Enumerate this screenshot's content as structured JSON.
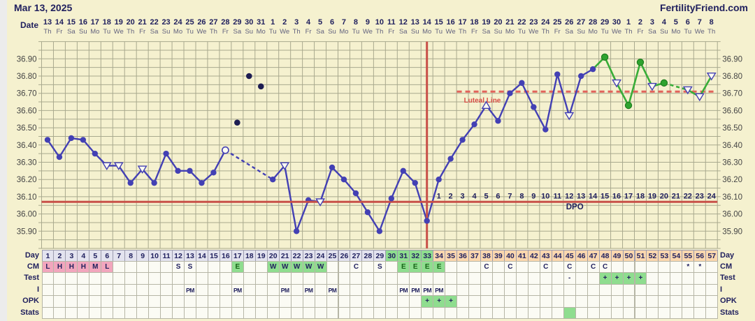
{
  "header": {
    "cycle_start_date": "Mar 13, 2025",
    "site": "FertilityFriend.com",
    "date_label": "Date"
  },
  "calendar": {
    "dates": [
      13,
      14,
      15,
      16,
      17,
      18,
      19,
      20,
      21,
      22,
      23,
      24,
      25,
      26,
      27,
      28,
      29,
      30,
      31,
      1,
      2,
      3,
      4,
      5,
      6,
      7,
      8,
      9,
      10,
      11,
      12,
      13,
      14,
      15,
      16,
      17,
      18,
      19,
      20,
      21,
      22,
      23,
      24,
      25,
      26,
      27,
      28,
      29,
      30,
      1,
      2,
      3,
      4,
      5,
      6,
      7,
      8
    ],
    "weekdays": [
      "Th",
      "Fr",
      "Sa",
      "Su",
      "Mo",
      "Tu",
      "We",
      "Th",
      "Fr",
      "Sa",
      "Su",
      "Mo",
      "Tu",
      "We",
      "Th",
      "Fr",
      "Sa",
      "Su",
      "Mo",
      "Tu",
      "We",
      "Th",
      "Fr",
      "Sa",
      "Su",
      "Mo",
      "Tu",
      "We",
      "Th",
      "Fr",
      "Sa",
      "Su",
      "Mo",
      "Tu",
      "We",
      "Th",
      "Fr",
      "Sa",
      "Su",
      "Mo",
      "Tu",
      "We",
      "Th",
      "Fr",
      "Sa",
      "Su",
      "Mo",
      "Tu",
      "We",
      "Th",
      "Fr",
      "Sa",
      "Su",
      "Mo",
      "Tu",
      "We",
      "Th"
    ]
  },
  "chart_data": {
    "type": "line",
    "title": "Basal body temperature chart",
    "unit": "C",
    "ylim": [
      35.8,
      37.0
    ],
    "ytick_labels": [
      "36.90",
      "36.80",
      "36.70",
      "36.60",
      "36.50",
      "36.40",
      "36.30",
      "36.20",
      "36.10",
      "36.00",
      "35.90"
    ],
    "days_total": 57,
    "points": [
      {
        "day": 1,
        "temp": 36.43,
        "marker": "dot"
      },
      {
        "day": 2,
        "temp": 36.33,
        "marker": "dot"
      },
      {
        "day": 3,
        "temp": 36.44,
        "marker": "dot"
      },
      {
        "day": 4,
        "temp": 36.43,
        "marker": "dot"
      },
      {
        "day": 5,
        "temp": 36.35,
        "marker": "dot"
      },
      {
        "day": 6,
        "temp": 36.28,
        "marker": "tri_down"
      },
      {
        "day": 7,
        "temp": 36.28,
        "marker": "tri_down"
      },
      {
        "day": 8,
        "temp": 36.18,
        "marker": "dot"
      },
      {
        "day": 9,
        "temp": 36.26,
        "marker": "tri_down"
      },
      {
        "day": 10,
        "temp": 36.18,
        "marker": "dot"
      },
      {
        "day": 11,
        "temp": 36.35,
        "marker": "dot"
      },
      {
        "day": 12,
        "temp": 36.25,
        "marker": "dot"
      },
      {
        "day": 13,
        "temp": 36.25,
        "marker": "dot"
      },
      {
        "day": 14,
        "temp": 36.18,
        "marker": "dot"
      },
      {
        "day": 15,
        "temp": 36.24,
        "marker": "dot"
      },
      {
        "day": 16,
        "temp": 36.37,
        "marker": "open"
      },
      {
        "day": 17,
        "temp": 36.53,
        "marker": "black"
      },
      {
        "day": 18,
        "temp": 36.8,
        "marker": "black"
      },
      {
        "day": 19,
        "temp": 36.74,
        "marker": "black"
      },
      {
        "day": 20,
        "temp": 36.2,
        "marker": "dot"
      },
      {
        "day": 21,
        "temp": 36.28,
        "marker": "tri_down"
      },
      {
        "day": 22,
        "temp": 35.9,
        "marker": "dot"
      },
      {
        "day": 23,
        "temp": 36.08,
        "marker": "dot"
      },
      {
        "day": 24,
        "temp": 36.07,
        "marker": "tri_down"
      },
      {
        "day": 25,
        "temp": 36.27,
        "marker": "dot"
      },
      {
        "day": 26,
        "temp": 36.2,
        "marker": "dot"
      },
      {
        "day": 27,
        "temp": 36.12,
        "marker": "dot"
      },
      {
        "day": 28,
        "temp": 36.01,
        "marker": "dot"
      },
      {
        "day": 29,
        "temp": 35.9,
        "marker": "dot"
      },
      {
        "day": 30,
        "temp": 36.09,
        "marker": "dot"
      },
      {
        "day": 31,
        "temp": 36.25,
        "marker": "dot"
      },
      {
        "day": 32,
        "temp": 36.18,
        "marker": "dot"
      },
      {
        "day": 33,
        "temp": 35.96,
        "marker": "dot"
      },
      {
        "day": 34,
        "temp": 36.2,
        "marker": "dot"
      },
      {
        "day": 35,
        "temp": 36.32,
        "marker": "dot"
      },
      {
        "day": 36,
        "temp": 36.43,
        "marker": "dot"
      },
      {
        "day": 37,
        "temp": 36.52,
        "marker": "dot"
      },
      {
        "day": 38,
        "temp": 36.63,
        "marker": "tri_up"
      },
      {
        "day": 39,
        "temp": 36.54,
        "marker": "dot"
      },
      {
        "day": 40,
        "temp": 36.7,
        "marker": "dot"
      },
      {
        "day": 41,
        "temp": 36.76,
        "marker": "dot"
      },
      {
        "day": 42,
        "temp": 36.62,
        "marker": "dot"
      },
      {
        "day": 43,
        "temp": 36.49,
        "marker": "dot"
      },
      {
        "day": 44,
        "temp": 36.81,
        "marker": "dot"
      },
      {
        "day": 45,
        "temp": 36.57,
        "marker": "tri_down"
      },
      {
        "day": 46,
        "temp": 36.8,
        "marker": "dot"
      },
      {
        "day": 47,
        "temp": 36.84,
        "marker": "dot"
      },
      {
        "day": 48,
        "temp": 36.91,
        "marker": "green"
      },
      {
        "day": 49,
        "temp": 36.76,
        "marker": "tri_down"
      },
      {
        "day": 50,
        "temp": 36.63,
        "marker": "green"
      },
      {
        "day": 51,
        "temp": 36.88,
        "marker": "green"
      },
      {
        "day": 52,
        "temp": 36.74,
        "marker": "tri_down"
      },
      {
        "day": 53,
        "temp": 36.76,
        "marker": "green"
      },
      {
        "day": 55,
        "temp": 36.72,
        "marker": "tri_down"
      },
      {
        "day": 56,
        "temp": 36.68,
        "marker": "tri_down"
      },
      {
        "day": 57,
        "temp": 36.8,
        "marker": "tri_down"
      }
    ],
    "line_segments": [
      {
        "from": 1,
        "to": 16,
        "style": "solid",
        "color": "blue"
      },
      {
        "from": 16,
        "to": 20,
        "style": "dashed",
        "color": "blue"
      },
      {
        "from": 20,
        "to": 47,
        "style": "solid",
        "color": "blue"
      },
      {
        "from": 47,
        "to": 53,
        "style": "solid",
        "color": "green"
      },
      {
        "from": 53,
        "to": 55,
        "style": "dashed",
        "color": "green"
      },
      {
        "from": 55,
        "to": 57,
        "style": "solid",
        "color": "green"
      }
    ],
    "coverline_temp": 36.07,
    "ovulation_day": 33,
    "luteal_line": {
      "temp": 36.71,
      "label": "Luteal Line",
      "start_day": 36,
      "end_day": 57
    },
    "dpo_axis": {
      "label": "DPO",
      "start_day": 34,
      "numbers": [
        1,
        2,
        3,
        4,
        5,
        6,
        7,
        8,
        9,
        10,
        11,
        12,
        13,
        14,
        15,
        16,
        17,
        18,
        19,
        20,
        21,
        22,
        23,
        24
      ]
    }
  },
  "table": {
    "row_labels_left": [
      "Day",
      "CM",
      "Test",
      "I",
      "OPK",
      "Stats"
    ],
    "row_labels_right": [
      "Day",
      "CM",
      "Test",
      "I",
      "OPK",
      "Stats"
    ],
    "day_numbers": [
      1,
      2,
      3,
      4,
      5,
      6,
      7,
      8,
      9,
      10,
      11,
      12,
      13,
      14,
      15,
      16,
      17,
      18,
      19,
      20,
      21,
      22,
      23,
      24,
      25,
      26,
      27,
      28,
      29,
      30,
      31,
      32,
      33,
      34,
      35,
      36,
      37,
      38,
      39,
      40,
      41,
      42,
      43,
      44,
      45,
      46,
      47,
      48,
      49,
      50,
      51,
      52,
      53,
      54,
      55,
      56,
      57
    ],
    "day_phases": [
      {
        "from": 1,
        "to": 29,
        "phase": "normal"
      },
      {
        "from": 30,
        "to": 33,
        "phase": "fertile"
      },
      {
        "from": 34,
        "to": 57,
        "phase": "luteal"
      }
    ],
    "cm": [
      {
        "day": 1,
        "text": "L",
        "bg": "pink"
      },
      {
        "day": 2,
        "text": "H",
        "bg": "pink"
      },
      {
        "day": 3,
        "text": "H",
        "bg": "pink"
      },
      {
        "day": 4,
        "text": "H",
        "bg": "pink"
      },
      {
        "day": 5,
        "text": "M",
        "bg": "pink"
      },
      {
        "day": 6,
        "text": "L",
        "bg": "pink"
      },
      {
        "day": 12,
        "text": "S",
        "bg": "none"
      },
      {
        "day": 13,
        "text": "S",
        "bg": "none"
      },
      {
        "day": 17,
        "text": "E",
        "bg": "green"
      },
      {
        "day": 20,
        "text": "W",
        "bg": "green"
      },
      {
        "day": 21,
        "text": "W",
        "bg": "green"
      },
      {
        "day": 22,
        "text": "W",
        "bg": "green"
      },
      {
        "day": 23,
        "text": "W",
        "bg": "green"
      },
      {
        "day": 24,
        "text": "W",
        "bg": "green"
      },
      {
        "day": 27,
        "text": "C",
        "bg": "none"
      },
      {
        "day": 29,
        "text": "S",
        "bg": "none"
      },
      {
        "day": 31,
        "text": "E",
        "bg": "green"
      },
      {
        "day": 32,
        "text": "E",
        "bg": "green"
      },
      {
        "day": 33,
        "text": "E",
        "bg": "green"
      },
      {
        "day": 34,
        "text": "E",
        "bg": "green"
      },
      {
        "day": 38,
        "text": "C",
        "bg": "none"
      },
      {
        "day": 40,
        "text": "C",
        "bg": "none"
      },
      {
        "day": 43,
        "text": "C",
        "bg": "none"
      },
      {
        "day": 45,
        "text": "C",
        "bg": "none"
      },
      {
        "day": 47,
        "text": "C",
        "bg": "none"
      },
      {
        "day": 48,
        "text": "C",
        "bg": "none"
      },
      {
        "day": 55,
        "text": "*",
        "bg": "none"
      },
      {
        "day": 56,
        "text": "*",
        "bg": "none"
      }
    ],
    "test": [
      {
        "day": 45,
        "text": "-",
        "bg": "none"
      },
      {
        "day": 48,
        "text": "+",
        "bg": "green"
      },
      {
        "day": 49,
        "text": "+",
        "bg": "green"
      },
      {
        "day": 50,
        "text": "+",
        "bg": "green"
      },
      {
        "day": 51,
        "text": "+",
        "bg": "green"
      }
    ],
    "intercourse": [
      {
        "day": 13,
        "text": "PM"
      },
      {
        "day": 17,
        "text": "PM"
      },
      {
        "day": 21,
        "text": "PM"
      },
      {
        "day": 23,
        "text": "PM"
      },
      {
        "day": 25,
        "text": "PM"
      },
      {
        "day": 31,
        "text": "PM"
      },
      {
        "day": 32,
        "text": "PM"
      },
      {
        "day": 33,
        "text": "PM"
      },
      {
        "day": 34,
        "text": "PM"
      }
    ],
    "opk": [
      {
        "day": 33,
        "text": "+",
        "bg": "green"
      },
      {
        "day": 34,
        "text": "+",
        "bg": "green"
      },
      {
        "day": 35,
        "text": "+",
        "bg": "green"
      }
    ],
    "stats": [
      {
        "day": 45,
        "text": "",
        "bg": "green"
      }
    ]
  },
  "colors": {
    "page_bg": "#f5f1cf",
    "grid": "#a9a98e",
    "navy": "#20205e",
    "line_blue": "#4340b4",
    "dot_black": "#1d1d52",
    "line_green": "#38ad38",
    "green_dot": "#2fa32f",
    "green_dot_edge": "#1e7d1e",
    "red": "#c85048",
    "luteal_red": "#e2635a",
    "luteal_text": "#d94f48",
    "pink": "#f2a6bd",
    "peach": "#fbd7ae",
    "fertile_green": "#8ede8e",
    "cell_green": "#8fdd8f",
    "header_gray": "#e3e3ef",
    "cell_white": "#fbfbf4",
    "axis_text": "#454545",
    "eggwhite_text": "#156415",
    "marker_fill": "#fffdf2"
  }
}
